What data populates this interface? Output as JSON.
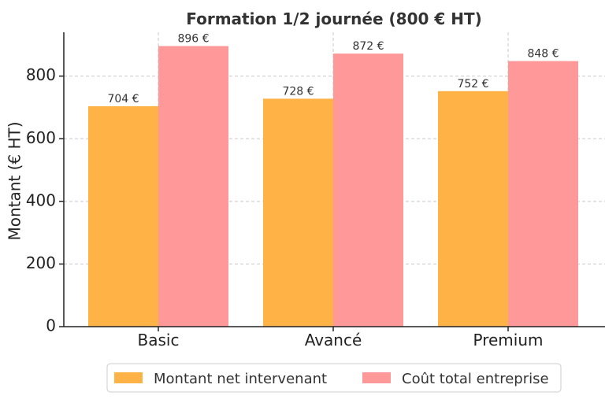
{
  "chart_data": {
    "type": "bar",
    "title": "Formation 1/2 journée (800 € HT)",
    "xlabel": "",
    "ylabel": "Montant (€ HT)",
    "categories": [
      "Basic",
      "Avancé",
      "Premium"
    ],
    "series": [
      {
        "name": "Montant net intervenant",
        "values": [
          704,
          728,
          752
        ],
        "labels": [
          "704 €",
          "728 €",
          "752 €"
        ],
        "color": "#FFB347"
      },
      {
        "name": "Coût total entreprise",
        "values": [
          896,
          872,
          848
        ],
        "labels": [
          "896 €",
          "872 €",
          "848 €"
        ],
        "color": "#FF9999"
      }
    ],
    "ylim": [
      0,
      940
    ],
    "yticks": [
      0,
      200,
      400,
      600,
      800
    ],
    "grid": true,
    "legend_position": "bottom"
  }
}
